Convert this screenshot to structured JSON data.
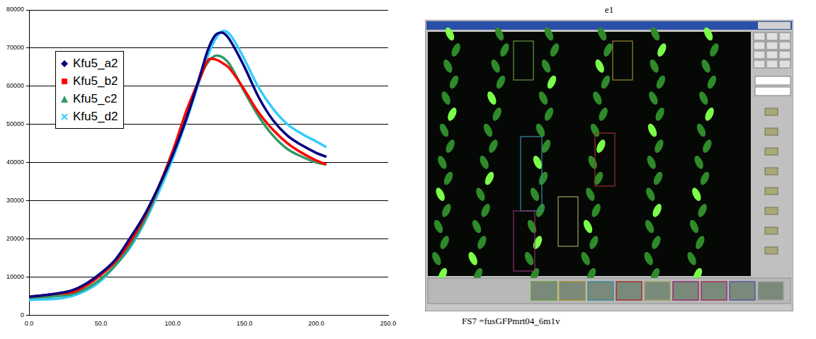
{
  "chart_data": {
    "type": "line",
    "x": [
      0,
      10,
      20,
      30,
      40,
      50,
      60,
      70,
      80,
      90,
      100,
      110,
      120,
      125,
      130,
      135,
      140,
      150,
      160,
      170,
      180,
      190,
      200,
      207
    ],
    "series": [
      {
        "name": "Kfu5_a2",
        "color": "#000080",
        "marker": "diamond",
        "values": [
          4800,
          5200,
          5700,
          6500,
          8300,
          11000,
          14500,
          20000,
          26000,
          33500,
          42000,
          52000,
          64000,
          70000,
          73500,
          74000,
          72000,
          65000,
          57000,
          51000,
          47000,
          44500,
          42500,
          41500
        ]
      },
      {
        "name": "Kfu5_b2",
        "color": "#ff0000",
        "marker": "square",
        "values": [
          4800,
          5200,
          5600,
          6000,
          7800,
          10500,
          14000,
          19000,
          25500,
          33500,
          43000,
          54000,
          63000,
          67000,
          67000,
          66000,
          64500,
          59000,
          53000,
          48500,
          45000,
          42500,
          40500,
          39500
        ]
      },
      {
        "name": "Kfu5_c2",
        "color": "#339966",
        "marker": "triangle",
        "values": [
          4500,
          4700,
          5000,
          5500,
          7000,
          9500,
          13000,
          18000,
          24500,
          33000,
          42000,
          52500,
          63000,
          66500,
          68000,
          67500,
          65500,
          58500,
          52000,
          47000,
          43500,
          41500,
          40000,
          39500
        ]
      },
      {
        "name": "Kfu5_d2",
        "color": "#33ccff",
        "marker": "x",
        "values": [
          4000,
          4100,
          4300,
          5000,
          6500,
          9000,
          13000,
          17500,
          24000,
          32000,
          41000,
          51500,
          63000,
          68500,
          72500,
          74500,
          73500,
          67000,
          59500,
          54000,
          50000,
          47500,
          45500,
          44000
        ]
      }
    ],
    "xlim": [
      0,
      250
    ],
    "xticks": [
      {
        "value": 0,
        "label": "0.0"
      },
      {
        "value": 50,
        "label": "50.0"
      },
      {
        "value": 100,
        "label": "100.0"
      },
      {
        "value": 150,
        "label": "150.0"
      },
      {
        "value": 200,
        "label": "200.0"
      },
      {
        "value": 250,
        "label": "250.0"
      }
    ],
    "ylim": [
      0,
      80000
    ],
    "yticks": [
      0,
      10000,
      20000,
      30000,
      40000,
      50000,
      60000,
      70000,
      80000
    ],
    "grid": true,
    "legend": "upper left"
  },
  "screenshot": {
    "title": "e1",
    "caption": "FS7 =fusGFPmrt04_6m1v"
  }
}
